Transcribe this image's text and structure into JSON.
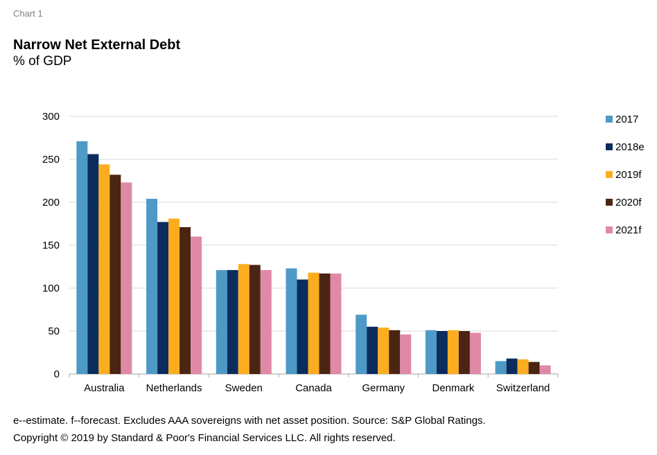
{
  "header": {
    "chart_label": "Chart 1",
    "title": "Narrow Net External Debt",
    "subtitle": "% of GDP"
  },
  "footer": {
    "note": "e--estimate. f--forecast. Excludes AAA sovereigns with net asset position. Source: S&P Global Ratings.",
    "copyright": "Copyright © 2019 by Standard & Poor's Financial Services LLC. All rights reserved."
  },
  "chart_data": {
    "type": "bar",
    "title": "Narrow Net External Debt",
    "subtitle": "% of GDP",
    "xlabel": "",
    "ylabel": "",
    "ylim": [
      0,
      300
    ],
    "yticks": [
      0,
      50,
      100,
      150,
      200,
      250,
      300
    ],
    "grid": true,
    "legend_position": "right",
    "categories": [
      "Australia",
      "Netherlands",
      "Sweden",
      "Canada",
      "Germany",
      "Denmark",
      "Switzerland"
    ],
    "series": [
      {
        "name": "2017",
        "color": "#4e9ac6",
        "values": [
          271,
          204,
          121,
          123,
          69,
          51,
          15
        ]
      },
      {
        "name": "2018e",
        "color": "#0a2d5e",
        "values": [
          256,
          177,
          121,
          110,
          55,
          50,
          18
        ]
      },
      {
        "name": "2019f",
        "color": "#fcad1f",
        "values": [
          244,
          181,
          128,
          118,
          54,
          51,
          17
        ]
      },
      {
        "name": "2020f",
        "color": "#4a2512",
        "values": [
          232,
          171,
          127,
          117,
          51,
          50,
          14
        ]
      },
      {
        "name": "2021f",
        "color": "#e089a6",
        "values": [
          223,
          160,
          121,
          117,
          46,
          48,
          10
        ]
      }
    ]
  }
}
